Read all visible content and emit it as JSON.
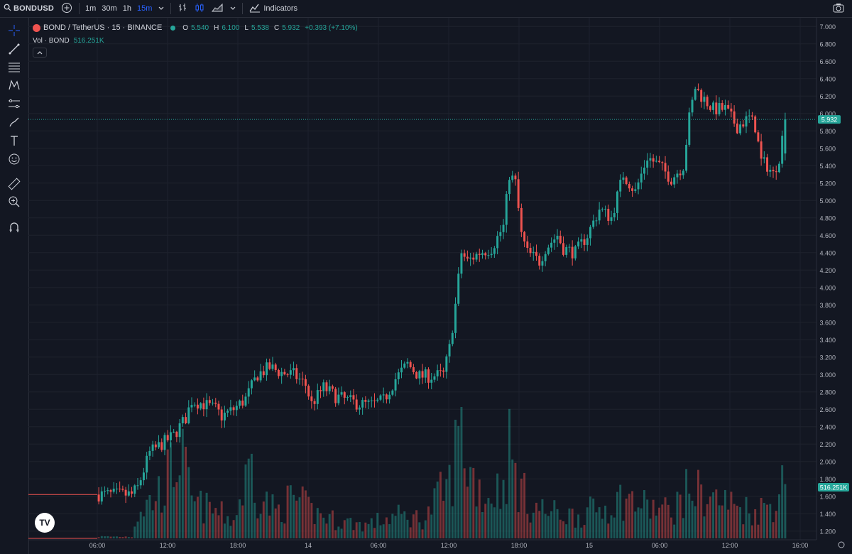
{
  "toolbar": {
    "symbol": "BONDUSD",
    "timeframes": [
      "1m",
      "30m",
      "1h",
      "15m"
    ],
    "active_timeframe": "15m",
    "indicators_label": "Indicators"
  },
  "legend": {
    "pair": "BOND / TetherUS · 15 · BINANCE",
    "o_label": "O",
    "o_value": "5.540",
    "h_label": "H",
    "h_value": "6.100",
    "l_label": "L",
    "l_value": "5.538",
    "c_label": "C",
    "c_value": "5.932",
    "change": "+0.393 (+7.10%)",
    "vol_label": "Vol · BOND",
    "vol_value": "516.251K"
  },
  "colors": {
    "background": "#131722",
    "up": "#26a69a",
    "down": "#ef5350",
    "grid": "#1e222d",
    "accent": "#2962ff"
  },
  "icons": [
    "search-icon",
    "add-symbol-icon",
    "chevron-down-icon",
    "bar-style-icon",
    "candle-style-icon",
    "area-style-icon",
    "indicators-icon",
    "camera-icon",
    "crosshair-icon",
    "trend-line-icon",
    "fib-icon",
    "pattern-icon",
    "measure-icon",
    "brush-icon",
    "text-icon",
    "emoji-icon",
    "ruler-icon",
    "zoom-icon",
    "magnet-icon",
    "tradingview-logo"
  ],
  "chart_data": {
    "type": "candlestick",
    "price_axis_ticks": [
      "7.000",
      "6.800",
      "6.600",
      "6.400",
      "6.200",
      "6.000",
      "5.800",
      "5.600",
      "5.400",
      "5.200",
      "5.000",
      "4.800",
      "4.600",
      "4.400",
      "4.200",
      "4.000",
      "3.800",
      "3.600",
      "3.400",
      "3.200",
      "3.000",
      "2.800",
      "2.600",
      "2.400",
      "2.200",
      "2.000",
      "1.800",
      "1.600",
      "1.400",
      "1.200"
    ],
    "price_range": [
      1.1,
      7.1
    ],
    "time_axis_ticks": [
      "06:00",
      "12:00",
      "18:00",
      "14",
      "06:00",
      "12:00",
      "18:00",
      "15",
      "06:00",
      "12:00",
      "16:00"
    ],
    "last_price_label": "5.932",
    "last_price": 5.932,
    "volume_label": "516.251K",
    "close_path": [
      [
        0,
        1.62
      ],
      [
        4,
        1.62
      ],
      [
        8,
        1.62
      ],
      [
        12,
        1.62
      ],
      [
        14,
        1.7
      ],
      [
        18,
        2.1
      ],
      [
        22,
        2.2
      ],
      [
        26,
        2.3
      ],
      [
        30,
        2.5
      ],
      [
        32,
        2.7
      ],
      [
        36,
        2.66
      ],
      [
        40,
        2.6
      ],
      [
        42,
        2.52
      ],
      [
        46,
        2.6
      ],
      [
        50,
        2.72
      ],
      [
        54,
        3.0
      ],
      [
        58,
        3.08
      ],
      [
        62,
        3.02
      ],
      [
        66,
        3.0
      ],
      [
        70,
        2.88
      ],
      [
        72,
        2.66
      ],
      [
        76,
        2.85
      ],
      [
        80,
        2.75
      ],
      [
        84,
        2.7
      ],
      [
        88,
        2.66
      ],
      [
        92,
        2.65
      ],
      [
        96,
        2.7
      ],
      [
        100,
        2.95
      ],
      [
        104,
        3.12
      ],
      [
        108,
        2.98
      ],
      [
        112,
        2.98
      ],
      [
        116,
        3.0
      ],
      [
        118,
        3.3
      ],
      [
        120,
        3.8
      ],
      [
        122,
        4.4
      ],
      [
        124,
        4.3
      ],
      [
        128,
        4.4
      ],
      [
        132,
        4.45
      ],
      [
        136,
        4.7
      ],
      [
        138,
        5.3
      ],
      [
        140,
        5.2
      ],
      [
        142,
        4.6
      ],
      [
        144,
        4.4
      ],
      [
        146,
        4.35
      ],
      [
        148,
        4.3
      ],
      [
        150,
        4.45
      ],
      [
        154,
        4.6
      ],
      [
        156,
        4.45
      ],
      [
        160,
        4.4
      ],
      [
        164,
        4.6
      ],
      [
        168,
        4.9
      ],
      [
        172,
        4.8
      ],
      [
        176,
        5.3
      ],
      [
        180,
        5.1
      ],
      [
        184,
        5.5
      ],
      [
        188,
        5.4
      ],
      [
        192,
        5.25
      ],
      [
        196,
        5.4
      ],
      [
        198,
        5.95
      ],
      [
        200,
        6.3
      ],
      [
        202,
        6.2
      ],
      [
        206,
        6.05
      ],
      [
        210,
        6.05
      ],
      [
        214,
        5.85
      ],
      [
        218,
        5.95
      ],
      [
        220,
        5.85
      ],
      [
        222,
        5.45
      ],
      [
        224,
        5.4
      ],
      [
        226,
        5.3
      ],
      [
        228,
        5.5
      ],
      [
        230,
        5.932
      ]
    ],
    "volume_path": [
      [
        0,
        0.02
      ],
      [
        12,
        0.02
      ],
      [
        14,
        0.3
      ],
      [
        18,
        0.4
      ],
      [
        22,
        0.55
      ],
      [
        26,
        0.8
      ],
      [
        28,
        1.0
      ],
      [
        32,
        0.4
      ],
      [
        40,
        0.3
      ],
      [
        46,
        0.2
      ],
      [
        52,
        0.85
      ],
      [
        54,
        0.5
      ],
      [
        60,
        0.3
      ],
      [
        66,
        0.45
      ],
      [
        72,
        0.3
      ],
      [
        80,
        0.2
      ],
      [
        90,
        0.15
      ],
      [
        100,
        0.25
      ],
      [
        110,
        0.22
      ],
      [
        114,
        0.45
      ],
      [
        118,
        0.6
      ],
      [
        120,
        0.95
      ],
      [
        122,
        1.4
      ],
      [
        124,
        0.8
      ],
      [
        130,
        0.45
      ],
      [
        136,
        0.6
      ],
      [
        138,
        1.0
      ],
      [
        140,
        0.7
      ],
      [
        144,
        0.4
      ],
      [
        150,
        0.3
      ],
      [
        160,
        0.25
      ],
      [
        170,
        0.35
      ],
      [
        176,
        0.45
      ],
      [
        184,
        0.35
      ],
      [
        192,
        0.3
      ],
      [
        198,
        0.55
      ],
      [
        202,
        0.5
      ],
      [
        210,
        0.4
      ],
      [
        220,
        0.3
      ],
      [
        226,
        0.4
      ],
      [
        230,
        0.65
      ]
    ]
  }
}
